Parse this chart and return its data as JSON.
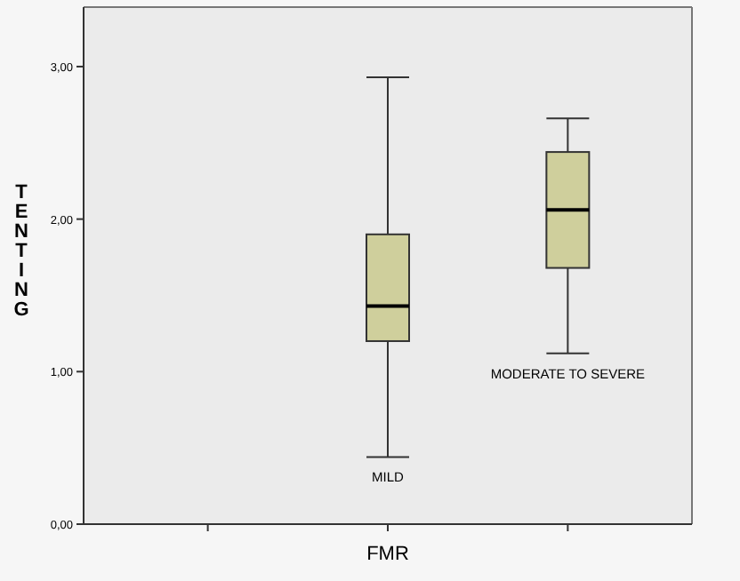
{
  "chart_data": {
    "type": "box",
    "xlabel": "FMR",
    "ylabel": "TENTING",
    "categories": [
      null,
      "MILD",
      "MODERATE TO SEVERE"
    ],
    "color": "#cfcf9c",
    "boxes": [
      null,
      {
        "low": 0.44,
        "q1": 1.2,
        "median": 1.43,
        "q3": 1.9,
        "high": 2.93
      },
      {
        "low": 1.12,
        "q1": 1.68,
        "median": 2.06,
        "q3": 2.44,
        "high": 2.66
      }
    ],
    "ylim": [
      0,
      3.39
    ],
    "yticks": [
      {
        "value": 0,
        "label": "0,00"
      },
      {
        "value": 1,
        "label": "1,00"
      },
      {
        "value": 2,
        "label": "2,00"
      },
      {
        "value": 3,
        "label": "3,00"
      }
    ],
    "grid": false
  }
}
